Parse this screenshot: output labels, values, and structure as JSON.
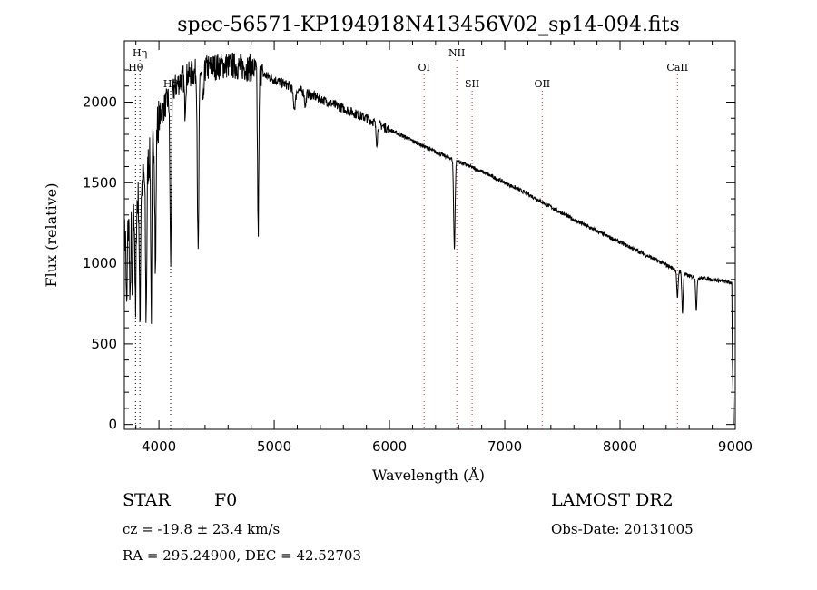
{
  "chart_data": {
    "type": "line",
    "title": "spec-56571-KP194918N413456V02_sp14-094.fits",
    "xlabel": "Wavelength (Å)",
    "ylabel": "Flux (relative)",
    "xlim": [
      3700,
      9000
    ],
    "ylim": [
      -30,
      2380
    ],
    "xticks": [
      4000,
      5000,
      6000,
      7000,
      8000,
      9000
    ],
    "yticks": [
      0,
      500,
      1000,
      1500,
      2000
    ],
    "line_color": "#000000",
    "marker_color_balmer": "#000000",
    "marker_color_other": "#cc3333",
    "lines": [
      {
        "label": "Hη",
        "wavelength": 3835,
        "row": 0
      },
      {
        "label": "Hθ",
        "wavelength": 3797,
        "row": 1
      },
      {
        "label": "Hδ",
        "wavelength": 4102,
        "row": 2
      },
      {
        "label": "OI",
        "wavelength": 6300,
        "row": 1
      },
      {
        "label": "NII",
        "wavelength": 6584,
        "row": 0
      },
      {
        "label": "SII",
        "wavelength": 6717,
        "row": 2
      },
      {
        "label": "OII",
        "wavelength": 7325,
        "row": 2
      },
      {
        "label": "CaII",
        "wavelength": 8498,
        "row": 1
      }
    ],
    "continuum": [
      [
        3700,
        1150
      ],
      [
        3800,
        1350
      ],
      [
        3900,
        1600
      ],
      [
        4000,
        1900
      ],
      [
        4100,
        2050
      ],
      [
        4200,
        2150
      ],
      [
        4400,
        2210
      ],
      [
        4600,
        2230
      ],
      [
        4800,
        2210
      ],
      [
        5000,
        2140
      ],
      [
        5200,
        2080
      ],
      [
        5400,
        2020
      ],
      [
        5600,
        1960
      ],
      [
        5800,
        1900
      ],
      [
        6000,
        1830
      ],
      [
        6200,
        1760
      ],
      [
        6400,
        1690
      ],
      [
        6600,
        1630
      ],
      [
        6800,
        1570
      ],
      [
        7000,
        1500
      ],
      [
        7200,
        1430
      ],
      [
        7400,
        1350
      ],
      [
        7600,
        1270
      ],
      [
        7800,
        1200
      ],
      [
        8000,
        1130
      ],
      [
        8200,
        1060
      ],
      [
        8400,
        990
      ],
      [
        8600,
        920
      ],
      [
        8800,
        900
      ],
      [
        8970,
        880
      ]
    ],
    "absorption": [
      [
        3720,
        500,
        6
      ],
      [
        3750,
        550,
        6
      ],
      [
        3770,
        600,
        6
      ],
      [
        3797,
        700,
        6
      ],
      [
        3835,
        800,
        7
      ],
      [
        3889,
        900,
        8
      ],
      [
        3934,
        1000,
        7
      ],
      [
        3970,
        900,
        7
      ],
      [
        4102,
        1050,
        9
      ],
      [
        4226,
        200,
        8
      ],
      [
        4340,
        1150,
        9
      ],
      [
        4383,
        250,
        10
      ],
      [
        4861,
        1000,
        8
      ],
      [
        5175,
        120,
        15
      ],
      [
        5270,
        80,
        10
      ],
      [
        5890,
        120,
        10
      ],
      [
        6563,
        550,
        9
      ],
      [
        8498,
        180,
        8
      ],
      [
        8542,
        250,
        8
      ],
      [
        8662,
        200,
        8
      ]
    ]
  },
  "footer": {
    "object_class": "STAR",
    "subclass": "F0",
    "redshift": "cz = -19.8 ± 23.4 km/s",
    "coords": "RA = 295.24900, DEC =  42.52703",
    "survey": "LAMOST DR2",
    "obs_date": "Obs-Date: 20131005"
  }
}
